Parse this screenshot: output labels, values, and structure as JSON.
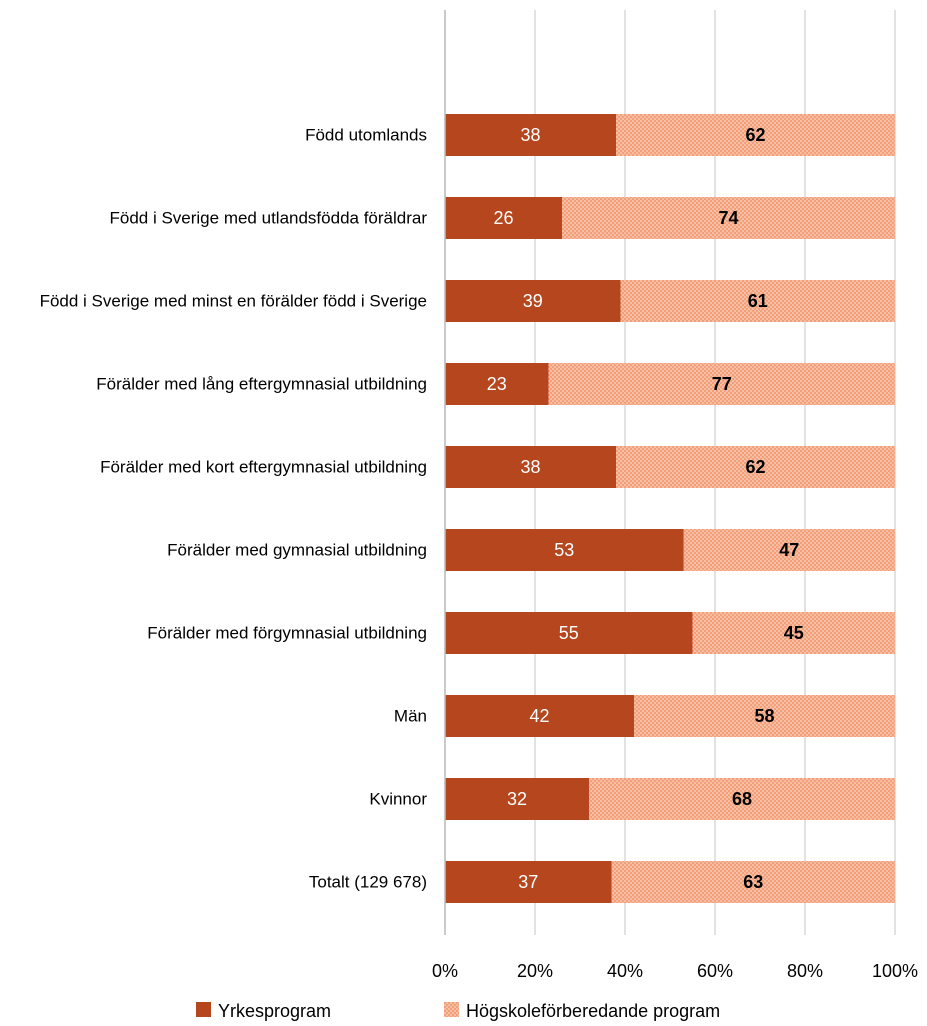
{
  "chart_data": {
    "type": "stacked_barh",
    "categories": [
      "Född utomlands",
      "Född i Sverige med utlandsfödda föräldrar",
      "Född i Sverige med minst en förälder född i Sverige",
      "Förälder med lång eftergymnasial utbildning",
      "Förälder med kort eftergymnasial utbildning",
      "Förälder med gymnasial utbildning",
      "Förälder med förgymnasial utbildning",
      "Män",
      "Kvinnor",
      "Totalt (129 678)"
    ],
    "series": [
      {
        "name": "Yrkesprogram",
        "color": "#b5461e",
        "values": [
          38,
          26,
          39,
          23,
          38,
          53,
          55,
          42,
          32,
          37
        ]
      },
      {
        "name": "Högskoleförberedande program",
        "color": "#f2a07a",
        "pattern": "dots",
        "values": [
          62,
          74,
          61,
          77,
          62,
          47,
          45,
          58,
          68,
          63
        ]
      }
    ],
    "xlim": [
      0,
      100
    ],
    "xticks": [
      {
        "value": 0,
        "label": "0%"
      },
      {
        "value": 20,
        "label": "20%"
      },
      {
        "value": 40,
        "label": "40%"
      },
      {
        "value": 60,
        "label": "60%"
      },
      {
        "value": 80,
        "label": "80%"
      },
      {
        "value": 100,
        "label": "100%"
      }
    ],
    "grid": true,
    "legend": "bottom"
  }
}
